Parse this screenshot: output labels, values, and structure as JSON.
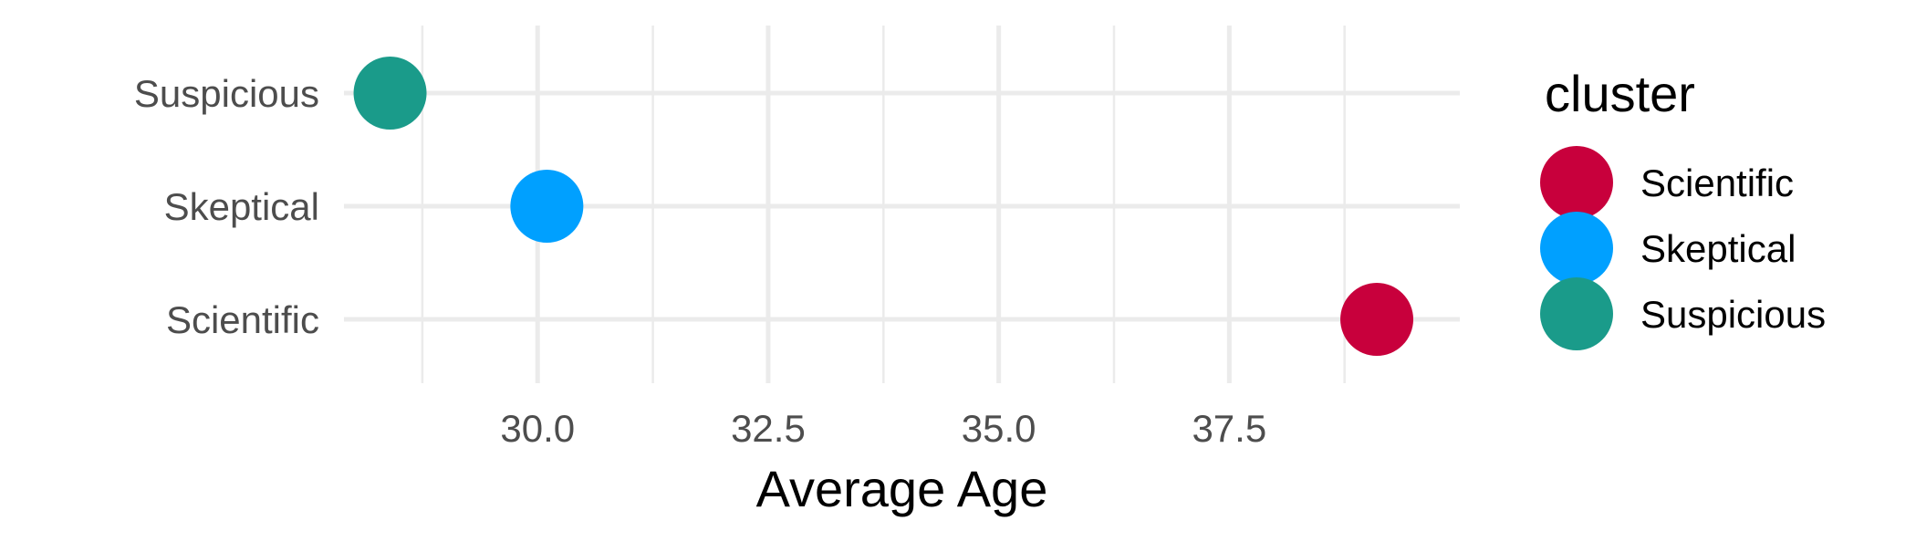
{
  "chart_data": {
    "type": "scatter",
    "title": "",
    "xlabel": "Average Age",
    "ylabel": "",
    "xlim": [
      27.9,
      40.0
    ],
    "x_ticks": [
      30.0,
      32.5,
      35.0,
      37.5
    ],
    "x_tick_labels": [
      "30.0",
      "32.5",
      "35.0",
      "37.5"
    ],
    "categories": [
      "Scientific",
      "Skeptical",
      "Suspicious"
    ],
    "points": [
      {
        "category": "Suspicious",
        "x": 28.4,
        "cluster": "Suspicious"
      },
      {
        "category": "Skeptical",
        "x": 30.1,
        "cluster": "Skeptical"
      },
      {
        "category": "Scientific",
        "x": 39.1,
        "cluster": "Scientific"
      }
    ],
    "grid": true,
    "legend": {
      "title": "cluster",
      "placement": "right",
      "entries": [
        {
          "label": "Scientific",
          "color": "#c8003c"
        },
        {
          "label": "Skeptical",
          "color": "#00a0ff"
        },
        {
          "label": "Suspicious",
          "color": "#1a9b8a"
        }
      ]
    }
  }
}
